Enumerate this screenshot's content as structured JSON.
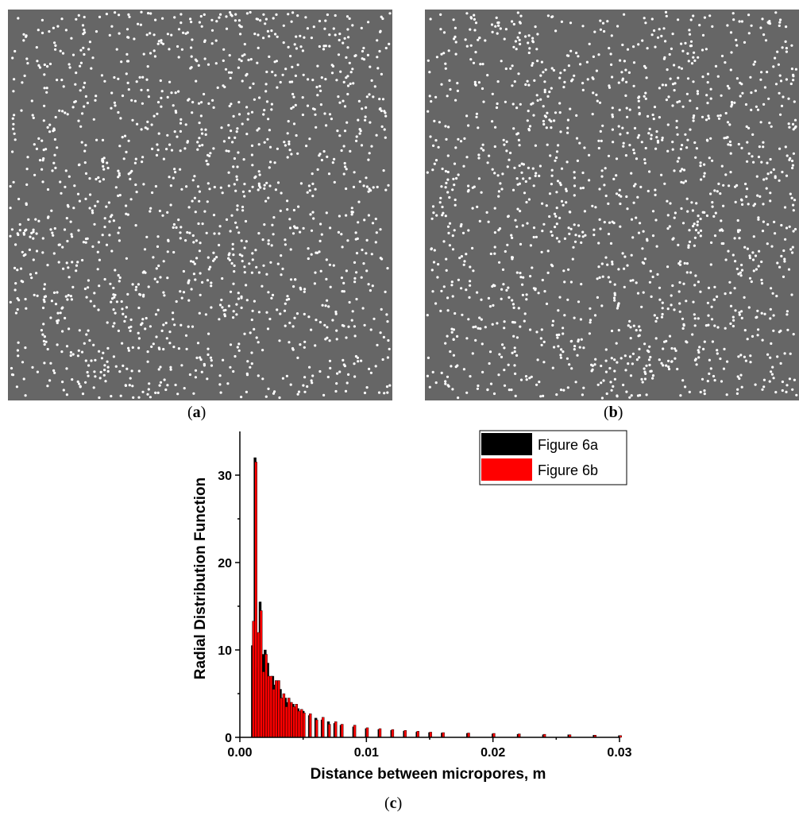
{
  "captions": {
    "a": {
      "open": "(",
      "letter": "a",
      "close": ")"
    },
    "b": {
      "open": "(",
      "letter": "b",
      "close": ")"
    },
    "c": {
      "open": "(",
      "letter": "c",
      "close": ")"
    }
  },
  "colors": {
    "panel_background": "#666666",
    "pore": "#ffffff",
    "series_a": "#000000",
    "series_b": "#ff0000"
  },
  "chart_data": {
    "type": "bar",
    "title": "",
    "xlabel": "Distance between micropores, m",
    "ylabel": "Radial Distribution Function",
    "xlim": [
      0.0,
      0.03
    ],
    "ylim": [
      0,
      35
    ],
    "xticks": [
      0.0,
      0.01,
      0.02,
      0.03
    ],
    "xtick_labels": [
      "0.00",
      "0.01",
      "0.02",
      "0.03"
    ],
    "yticks": [
      0,
      10,
      20,
      30
    ],
    "ytick_labels": [
      "0",
      "10",
      "20",
      "30"
    ],
    "legend_position": "top-right",
    "series": [
      {
        "name": "Figure 6a",
        "x": [
          0.001,
          0.0012,
          0.0014,
          0.0016,
          0.0018,
          0.002,
          0.0022,
          0.0024,
          0.0026,
          0.0028,
          0.003,
          0.0032,
          0.0034,
          0.0036,
          0.0038,
          0.004,
          0.0042,
          0.0044,
          0.0046,
          0.0048,
          0.005,
          0.0055,
          0.006,
          0.0065,
          0.007,
          0.0075,
          0.008,
          0.009,
          0.01,
          0.011,
          0.012,
          0.013,
          0.014,
          0.015,
          0.016,
          0.018,
          0.02,
          0.022,
          0.024,
          0.026,
          0.028,
          0.03
        ],
        "values": [
          10.5,
          32.0,
          8.0,
          15.5,
          9.5,
          10.0,
          8.5,
          6.5,
          7.0,
          6.0,
          5.5,
          5.5,
          4.5,
          4.5,
          4.0,
          4.0,
          3.8,
          3.5,
          3.3,
          3.0,
          3.0,
          2.5,
          2.2,
          2.0,
          1.8,
          1.6,
          1.4,
          1.2,
          1.0,
          0.9,
          0.8,
          0.7,
          0.6,
          0.55,
          0.5,
          0.45,
          0.4,
          0.35,
          0.3,
          0.3,
          0.25,
          0.2
        ]
      },
      {
        "name": "Figure 6b",
        "x": [
          0.001,
          0.0012,
          0.0014,
          0.0016,
          0.0018,
          0.002,
          0.0022,
          0.0024,
          0.0026,
          0.0028,
          0.003,
          0.0032,
          0.0034,
          0.0036,
          0.0038,
          0.004,
          0.0042,
          0.0044,
          0.0046,
          0.0048,
          0.005,
          0.0055,
          0.006,
          0.0065,
          0.007,
          0.0075,
          0.008,
          0.009,
          0.01,
          0.011,
          0.012,
          0.013,
          0.014,
          0.015,
          0.016,
          0.018,
          0.02,
          0.022,
          0.024,
          0.026,
          0.028,
          0.03
        ],
        "values": [
          13.3,
          31.5,
          12.0,
          14.5,
          7.5,
          9.5,
          7.0,
          7.0,
          5.5,
          6.5,
          6.5,
          4.5,
          5.0,
          3.5,
          4.5,
          4.0,
          3.5,
          3.8,
          3.0,
          3.2,
          2.8,
          2.7,
          2.0,
          2.3,
          1.5,
          1.8,
          1.5,
          1.4,
          1.1,
          1.0,
          0.9,
          0.8,
          0.7,
          0.6,
          0.55,
          0.5,
          0.45,
          0.4,
          0.35,
          0.3,
          0.25,
          0.2
        ]
      }
    ]
  }
}
